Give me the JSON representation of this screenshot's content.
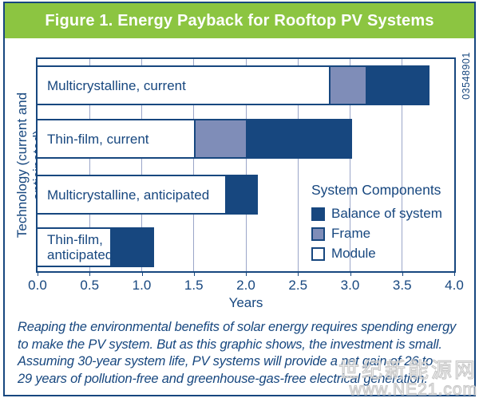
{
  "header": {
    "title": "Figure 1. Energy Payback for Rooftop PV Systems"
  },
  "chart_data": {
    "type": "bar",
    "orientation": "horizontal",
    "stacked": true,
    "title": "Figure 1. Energy Payback for Rooftop PV Systems",
    "xlabel": "Years",
    "ylabel": "Technology (current and anticipated)",
    "xlim": [
      0.0,
      4.0
    ],
    "x_ticks": [
      "0.0",
      "0.5",
      "1.0",
      "1.5",
      "2.0",
      "2.5",
      "3.0",
      "3.5",
      "4.0"
    ],
    "grid": "vertical gridlines every 0.5 years",
    "figure_number": "03548901",
    "categories": [
      "Multicrystalline, current",
      "Thin-film, current",
      "Multicrystalline, anticipated",
      "Thin-film, anticipated"
    ],
    "bar_display_labels": [
      "Multicrystalline, current",
      "Thin-film, current",
      "Multicrystalline, anticipated",
      "Thin-film,\nanticipated"
    ],
    "series": [
      {
        "name": "Module",
        "color": "#ffffff",
        "values": [
          2.8,
          1.5,
          1.8,
          0.7
        ]
      },
      {
        "name": "Frame",
        "color": "#7f8db8",
        "values": [
          0.35,
          0.5,
          0,
          0
        ]
      },
      {
        "name": "Balance of system",
        "color": "#17477f",
        "values": [
          0.6,
          1.0,
          0.3,
          0.4
        ]
      }
    ],
    "totals": [
      3.75,
      3.0,
      2.1,
      1.1
    ],
    "legend": {
      "title": "System Components",
      "position": "inside lower right",
      "items": [
        {
          "label": "Balance of system",
          "color": "#17477f"
        },
        {
          "label": "Frame",
          "color": "#7f8db8"
        },
        {
          "label": "Module",
          "color": "#ffffff"
        }
      ]
    }
  },
  "caption": {
    "lines": [
      "Reaping the environmental benefits of solar energy requires spending energy",
      "to make the PV system. But as this graphic shows, the investment is small.",
      "Assuming 30-year system life, PV systems will provide a net gain of 26 to",
      "29 years of pollution-free and greenhouse-gas-free electrical generation."
    ]
  },
  "watermark": {
    "line1": "世纪新能源网",
    "line2": "www.NE21.com"
  },
  "colors": {
    "accent_green": "#8cc541",
    "navy": "#17477f",
    "frame_blue": "#7f8db8",
    "gridline": "#9ba6c9",
    "watermark_gray": "#c9c9c9"
  }
}
